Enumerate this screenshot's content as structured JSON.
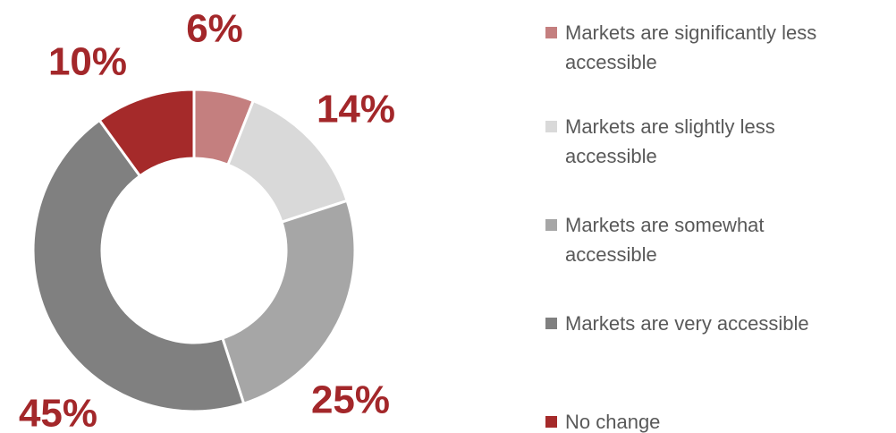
{
  "chart_data": {
    "type": "donut",
    "categories": [
      "Markets are significantly less accessible",
      "Markets are slightly less accessible",
      "Markets are somewhat accessible",
      "Markets are very accessible",
      "No change"
    ],
    "values": [
      6,
      14,
      25,
      45,
      10
    ],
    "value_labels": [
      "6%",
      "14%",
      "25%",
      "45%",
      "10%"
    ],
    "colors": [
      "#c47f7f",
      "#d9d9d9",
      "#a6a6a6",
      "#808080",
      "#a52a2a"
    ],
    "label_color": "#a3272a",
    "legend": "right"
  }
}
